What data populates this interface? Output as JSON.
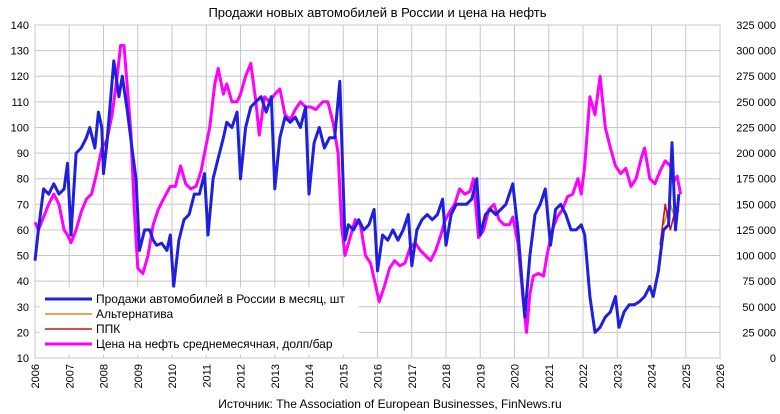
{
  "chart_data": {
    "type": "line",
    "title": "Продажи новых автомобилей в России и цена на нефть",
    "source": "Источник: The Association of European Businesses, FinNews.ru",
    "left_axis": {
      "ylim": [
        10,
        140
      ],
      "ticks": [
        "10",
        "20",
        "30",
        "40",
        "50",
        "60",
        "70",
        "80",
        "90",
        "100",
        "110",
        "120",
        "130",
        "140"
      ]
    },
    "right_axis": {
      "ylim": [
        0,
        325000
      ],
      "ticks": [
        "0",
        "25 000",
        "50 000",
        "75 000",
        "100 000",
        "125 000",
        "150 000",
        "175 000",
        "200 000",
        "225 000",
        "250 000",
        "275 000",
        "300 000",
        "325 000"
      ]
    },
    "x_axis": {
      "xlim": [
        2006,
        2026
      ],
      "ticks": [
        "2006",
        "2007",
        "2008",
        "2009",
        "2010",
        "2011",
        "2012",
        "2013",
        "2014",
        "2015",
        "2016",
        "2017",
        "2018",
        "2019",
        "2020",
        "2021",
        "2022",
        "2023",
        "2024",
        "2025",
        "2026"
      ]
    },
    "grid": true,
    "legend_position": "bottom-left",
    "series": [
      {
        "name": "Продажи  автомобилей в России в месяц, шт",
        "color": "#1f1fe0",
        "axis": "right",
        "points": [
          [
            2006.0,
            95000
          ],
          [
            2006.1,
            125000
          ],
          [
            2006.25,
            165000
          ],
          [
            2006.4,
            160000
          ],
          [
            2006.55,
            170000
          ],
          [
            2006.7,
            160000
          ],
          [
            2006.85,
            165000
          ],
          [
            2006.95,
            190000
          ],
          [
            2007.05,
            120000
          ],
          [
            2007.2,
            200000
          ],
          [
            2007.35,
            205000
          ],
          [
            2007.5,
            215000
          ],
          [
            2007.6,
            225000
          ],
          [
            2007.75,
            205000
          ],
          [
            2007.85,
            240000
          ],
          [
            2007.95,
            225000
          ],
          [
            2008.0,
            180000
          ],
          [
            2008.1,
            210000
          ],
          [
            2008.2,
            250000
          ],
          [
            2008.3,
            290000
          ],
          [
            2008.45,
            255000
          ],
          [
            2008.55,
            275000
          ],
          [
            2008.7,
            240000
          ],
          [
            2008.85,
            200000
          ],
          [
            2008.95,
            175000
          ],
          [
            2009.05,
            105000
          ],
          [
            2009.2,
            125000
          ],
          [
            2009.35,
            125000
          ],
          [
            2009.45,
            115000
          ],
          [
            2009.55,
            110000
          ],
          [
            2009.7,
            112000
          ],
          [
            2009.85,
            105000
          ],
          [
            2009.95,
            120000
          ],
          [
            2010.05,
            70000
          ],
          [
            2010.2,
            115000
          ],
          [
            2010.35,
            135000
          ],
          [
            2010.5,
            140000
          ],
          [
            2010.65,
            160000
          ],
          [
            2010.8,
            160000
          ],
          [
            2010.95,
            180000
          ],
          [
            2011.05,
            120000
          ],
          [
            2011.2,
            175000
          ],
          [
            2011.35,
            195000
          ],
          [
            2011.5,
            215000
          ],
          [
            2011.6,
            230000
          ],
          [
            2011.75,
            225000
          ],
          [
            2011.9,
            240000
          ],
          [
            2012.0,
            175000
          ],
          [
            2012.15,
            225000
          ],
          [
            2012.3,
            245000
          ],
          [
            2012.45,
            250000
          ],
          [
            2012.6,
            255000
          ],
          [
            2012.75,
            240000
          ],
          [
            2012.9,
            255000
          ],
          [
            2013.0,
            165000
          ],
          [
            2013.15,
            215000
          ],
          [
            2013.3,
            235000
          ],
          [
            2013.45,
            230000
          ],
          [
            2013.6,
            235000
          ],
          [
            2013.75,
            225000
          ],
          [
            2013.9,
            245000
          ],
          [
            2014.0,
            160000
          ],
          [
            2014.15,
            210000
          ],
          [
            2014.3,
            225000
          ],
          [
            2014.45,
            205000
          ],
          [
            2014.6,
            215000
          ],
          [
            2014.75,
            215000
          ],
          [
            2014.9,
            270000
          ],
          [
            2015.05,
            115000
          ],
          [
            2015.15,
            130000
          ],
          [
            2015.3,
            125000
          ],
          [
            2015.45,
            135000
          ],
          [
            2015.6,
            125000
          ],
          [
            2015.75,
            130000
          ],
          [
            2015.9,
            145000
          ],
          [
            2016.0,
            85000
          ],
          [
            2016.15,
            120000
          ],
          [
            2016.3,
            115000
          ],
          [
            2016.45,
            125000
          ],
          [
            2016.6,
            115000
          ],
          [
            2016.75,
            125000
          ],
          [
            2016.9,
            140000
          ],
          [
            2017.0,
            90000
          ],
          [
            2017.15,
            125000
          ],
          [
            2017.3,
            135000
          ],
          [
            2017.45,
            140000
          ],
          [
            2017.6,
            135000
          ],
          [
            2017.75,
            140000
          ],
          [
            2017.9,
            155000
          ],
          [
            2018.0,
            110000
          ],
          [
            2018.15,
            140000
          ],
          [
            2018.3,
            150000
          ],
          [
            2018.45,
            150000
          ],
          [
            2018.6,
            150000
          ],
          [
            2018.75,
            155000
          ],
          [
            2018.9,
            175000
          ],
          [
            2019.0,
            120000
          ],
          [
            2019.15,
            140000
          ],
          [
            2019.3,
            145000
          ],
          [
            2019.45,
            140000
          ],
          [
            2019.6,
            145000
          ],
          [
            2019.75,
            150000
          ],
          [
            2019.95,
            170000
          ],
          [
            2020.1,
            125000
          ],
          [
            2020.3,
            40000
          ],
          [
            2020.45,
            100000
          ],
          [
            2020.6,
            140000
          ],
          [
            2020.75,
            150000
          ],
          [
            2020.9,
            165000
          ],
          [
            2021.05,
            110000
          ],
          [
            2021.2,
            145000
          ],
          [
            2021.35,
            150000
          ],
          [
            2021.5,
            140000
          ],
          [
            2021.65,
            125000
          ],
          [
            2021.8,
            125000
          ],
          [
            2021.95,
            130000
          ],
          [
            2022.05,
            120000
          ],
          [
            2022.2,
            60000
          ],
          [
            2022.35,
            25000
          ],
          [
            2022.5,
            30000
          ],
          [
            2022.65,
            40000
          ],
          [
            2022.8,
            45000
          ],
          [
            2022.95,
            60000
          ],
          [
            2023.05,
            30000
          ],
          [
            2023.2,
            45000
          ],
          [
            2023.35,
            52000
          ],
          [
            2023.5,
            52000
          ],
          [
            2023.65,
            55000
          ],
          [
            2023.8,
            60000
          ],
          [
            2023.95,
            70000
          ],
          [
            2024.05,
            60000
          ],
          [
            2024.2,
            85000
          ],
          [
            2024.35,
            125000
          ],
          [
            2024.5,
            130000
          ],
          [
            2024.6,
            210000
          ],
          [
            2024.7,
            125000
          ],
          [
            2024.8,
            160000
          ]
        ]
      },
      {
        "name": "Альтернатива",
        "color": "#e8821e",
        "axis": "right",
        "points": [
          [
            2024.35,
            130000
          ],
          [
            2024.55,
            150000
          ],
          [
            2024.7,
            135000
          ],
          [
            2024.8,
            145000
          ]
        ]
      },
      {
        "name": "ППК",
        "color": "#cc1010",
        "axis": "right",
        "points": [
          [
            2024.25,
            110000
          ],
          [
            2024.4,
            150000
          ],
          [
            2024.55,
            125000
          ],
          [
            2024.7,
            145000
          ],
          [
            2024.8,
            150000
          ]
        ]
      },
      {
        "name": "Цена на нефть среднемесячная, долп/бар",
        "color": "#ff00ff",
        "axis": "left",
        "points": [
          [
            2006.0,
            63
          ],
          [
            2006.1,
            60
          ],
          [
            2006.25,
            65
          ],
          [
            2006.4,
            70
          ],
          [
            2006.55,
            74
          ],
          [
            2006.7,
            70
          ],
          [
            2006.85,
            60
          ],
          [
            2006.95,
            58
          ],
          [
            2007.05,
            55
          ],
          [
            2007.2,
            60
          ],
          [
            2007.35,
            67
          ],
          [
            2007.5,
            72
          ],
          [
            2007.65,
            74
          ],
          [
            2007.8,
            82
          ],
          [
            2007.95,
            92
          ],
          [
            2008.1,
            95
          ],
          [
            2008.25,
            105
          ],
          [
            2008.4,
            120
          ],
          [
            2008.5,
            132
          ],
          [
            2008.6,
            132
          ],
          [
            2008.7,
            115
          ],
          [
            2008.8,
            98
          ],
          [
            2008.9,
            68
          ],
          [
            2009.0,
            45
          ],
          [
            2009.15,
            43
          ],
          [
            2009.3,
            50
          ],
          [
            2009.45,
            62
          ],
          [
            2009.6,
            68
          ],
          [
            2009.75,
            72
          ],
          [
            2009.95,
            77
          ],
          [
            2010.1,
            77
          ],
          [
            2010.25,
            85
          ],
          [
            2010.4,
            78
          ],
          [
            2010.55,
            76
          ],
          [
            2010.7,
            77
          ],
          [
            2010.85,
            83
          ],
          [
            2010.95,
            90
          ],
          [
            2011.1,
            100
          ],
          [
            2011.25,
            117
          ],
          [
            2011.35,
            123
          ],
          [
            2011.5,
            113
          ],
          [
            2011.6,
            117
          ],
          [
            2011.75,
            110
          ],
          [
            2011.9,
            110
          ],
          [
            2012.0,
            113
          ],
          [
            2012.15,
            120
          ],
          [
            2012.3,
            125
          ],
          [
            2012.45,
            110
          ],
          [
            2012.55,
            97
          ],
          [
            2012.7,
            112
          ],
          [
            2012.85,
            110
          ],
          [
            2013.0,
            113
          ],
          [
            2013.15,
            115
          ],
          [
            2013.3,
            105
          ],
          [
            2013.45,
            103
          ],
          [
            2013.6,
            107
          ],
          [
            2013.75,
            110
          ],
          [
            2013.9,
            108
          ],
          [
            2014.05,
            108
          ],
          [
            2014.2,
            107
          ],
          [
            2014.4,
            110
          ],
          [
            2014.55,
            110
          ],
          [
            2014.7,
            102
          ],
          [
            2014.85,
            90
          ],
          [
            2014.95,
            62
          ],
          [
            2015.05,
            50
          ],
          [
            2015.2,
            57
          ],
          [
            2015.35,
            64
          ],
          [
            2015.5,
            62
          ],
          [
            2015.65,
            50
          ],
          [
            2015.8,
            47
          ],
          [
            2015.95,
            38
          ],
          [
            2016.05,
            32
          ],
          [
            2016.2,
            38
          ],
          [
            2016.35,
            45
          ],
          [
            2016.5,
            48
          ],
          [
            2016.65,
            46
          ],
          [
            2016.8,
            47
          ],
          [
            2016.95,
            53
          ],
          [
            2017.1,
            55
          ],
          [
            2017.25,
            52
          ],
          [
            2017.4,
            50
          ],
          [
            2017.55,
            48
          ],
          [
            2017.7,
            52
          ],
          [
            2017.85,
            58
          ],
          [
            2017.95,
            63
          ],
          [
            2018.1,
            67
          ],
          [
            2018.25,
            70
          ],
          [
            2018.4,
            76
          ],
          [
            2018.55,
            74
          ],
          [
            2018.7,
            75
          ],
          [
            2018.8,
            80
          ],
          [
            2018.9,
            65
          ],
          [
            2018.95,
            57
          ],
          [
            2019.1,
            60
          ],
          [
            2019.25,
            68
          ],
          [
            2019.4,
            70
          ],
          [
            2019.55,
            64
          ],
          [
            2019.7,
            62
          ],
          [
            2019.85,
            62
          ],
          [
            2019.95,
            65
          ],
          [
            2020.1,
            55
          ],
          [
            2020.25,
            33
          ],
          [
            2020.35,
            20
          ],
          [
            2020.45,
            35
          ],
          [
            2020.55,
            42
          ],
          [
            2020.7,
            43
          ],
          [
            2020.85,
            42
          ],
          [
            2020.95,
            50
          ],
          [
            2021.1,
            60
          ],
          [
            2021.25,
            65
          ],
          [
            2021.4,
            68
          ],
          [
            2021.55,
            73
          ],
          [
            2021.7,
            74
          ],
          [
            2021.85,
            80
          ],
          [
            2021.95,
            74
          ],
          [
            2022.05,
            85
          ],
          [
            2022.2,
            112
          ],
          [
            2022.35,
            105
          ],
          [
            2022.5,
            120
          ],
          [
            2022.65,
            100
          ],
          [
            2022.8,
            92
          ],
          [
            2022.95,
            85
          ],
          [
            2023.1,
            82
          ],
          [
            2023.25,
            84
          ],
          [
            2023.4,
            77
          ],
          [
            2023.55,
            80
          ],
          [
            2023.7,
            88
          ],
          [
            2023.8,
            92
          ],
          [
            2023.95,
            80
          ],
          [
            2024.1,
            78
          ],
          [
            2024.25,
            83
          ],
          [
            2024.4,
            87
          ],
          [
            2024.55,
            85
          ],
          [
            2024.65,
            79
          ],
          [
            2024.75,
            81
          ],
          [
            2024.85,
            74
          ]
        ]
      }
    ]
  }
}
